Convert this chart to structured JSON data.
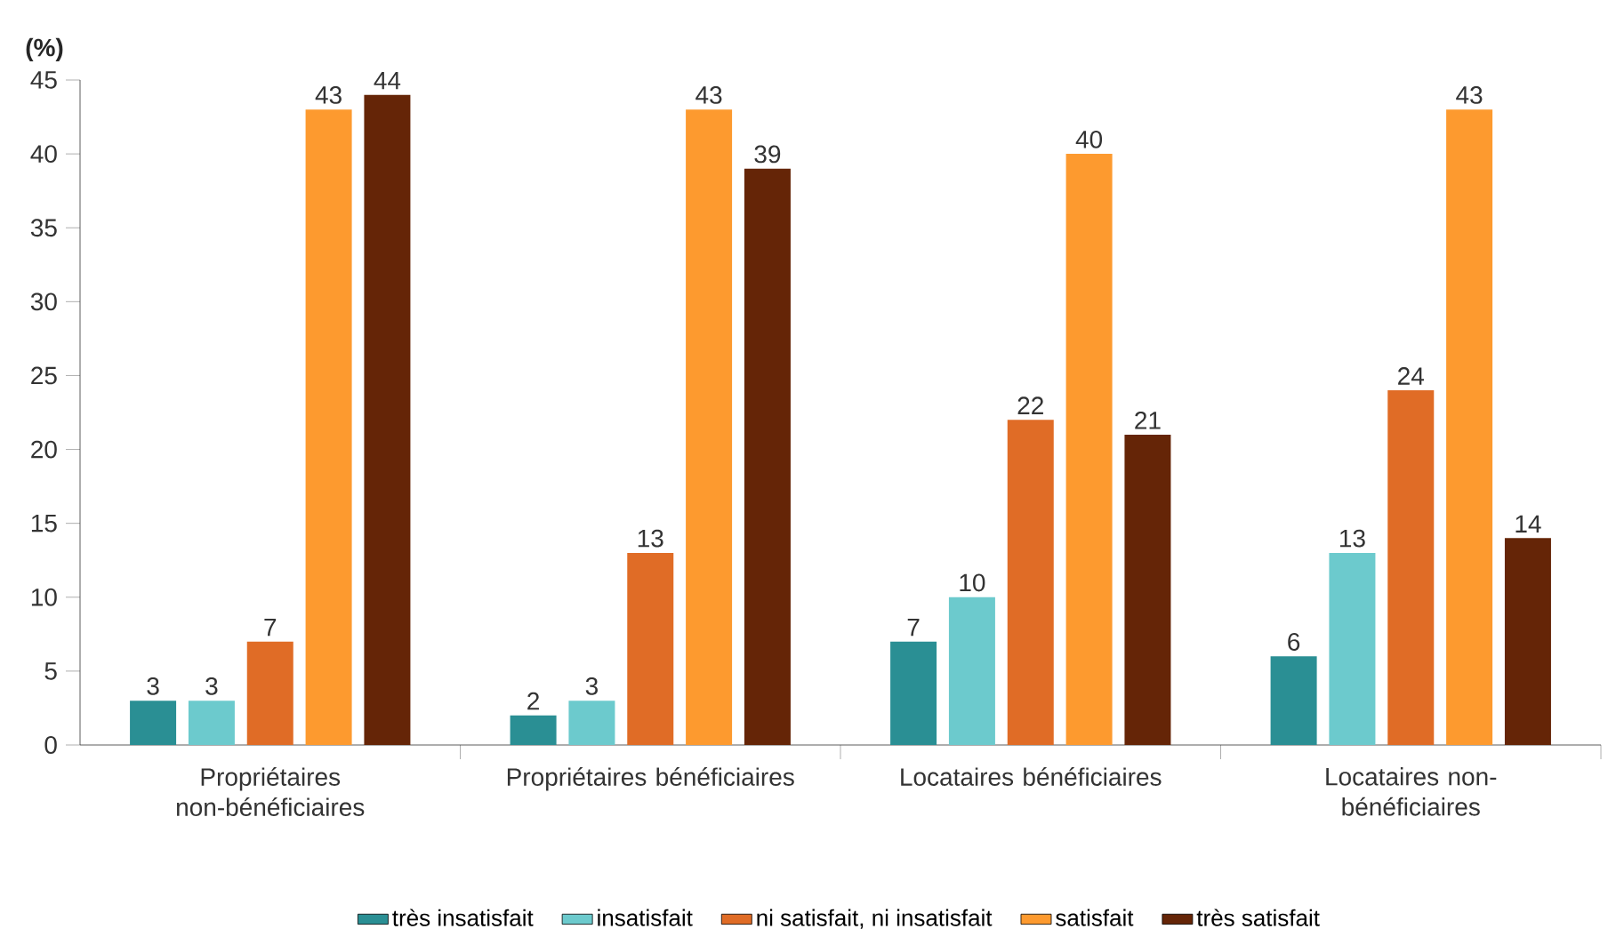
{
  "chart_data": {
    "type": "bar",
    "ylabel": "(%)",
    "categories": [
      "Propriétaires non-bénéficiaires",
      "Propriétaires bénéficiaires",
      "Locataires bénéficiaires",
      "Locataires non-bénéficiaires"
    ],
    "series": [
      {
        "name": "très insatisfait",
        "color": "#2a8f94",
        "values": [
          3,
          2,
          7,
          6
        ]
      },
      {
        "name": "insatisfait",
        "color": "#6ccacd",
        "values": [
          3,
          3,
          10,
          13
        ]
      },
      {
        "name": "ni satisfait, ni insatisfait",
        "color": "#e06c26",
        "values": [
          7,
          13,
          22,
          24
        ]
      },
      {
        "name": "satisfait",
        "color": "#fd9a2f",
        "values": [
          43,
          43,
          40,
          43
        ]
      },
      {
        "name": "très satisfait",
        "color": "#652507",
        "values": [
          44,
          39,
          21,
          14
        ]
      }
    ],
    "data_labels": true,
    "ylim": [
      0,
      45
    ],
    "yticks": [
      0,
      5,
      10,
      15,
      20,
      25,
      30,
      35,
      40,
      45
    ],
    "grid": false,
    "legend": "bottom"
  }
}
